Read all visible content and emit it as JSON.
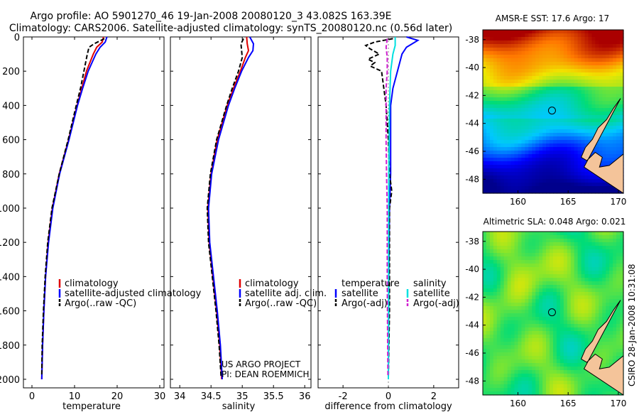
{
  "header": {
    "line1": "Argo profile: AO 5901270_46 19-Jan-2008 20080120_3 43.082S 163.39E",
    "line2": "Climatology: CARS2006. Satellite-adjusted climatology: synTS_20080120.nc (0.56d later)"
  },
  "credits": {
    "project": "US ARGO PROJECT",
    "pi": "PI: DEAN ROEMMICH",
    "stamp": "CSIRO 28-Jan-2008 10:31:08"
  },
  "colors": {
    "climatology": "#e00000",
    "satellite": "#0000ff",
    "argo": "#000000",
    "sal_satellite": "#00e0e0",
    "sal_argo": "#d020d0",
    "land": "#f4c49a"
  },
  "chart_data": [
    {
      "type": "line",
      "name": "temperature-profile",
      "xlabel": "temperature",
      "ylabel": "",
      "xlim": [
        -2,
        31
      ],
      "ylim": [
        2050,
        0
      ],
      "xticks": [
        0,
        10,
        20,
        30
      ],
      "yticks": [
        0,
        200,
        400,
        600,
        800,
        1000,
        1200,
        1400,
        1600,
        1800,
        2000
      ],
      "legend": [
        {
          "label": "climatology",
          "color": "#e00000",
          "dash": false
        },
        {
          "label": "satellite-adjusted climatology",
          "color": "#0000ff",
          "dash": false
        },
        {
          "label": "Argo(..raw -QC)",
          "color": "#000000",
          "dash": true
        }
      ],
      "series": [
        {
          "name": "climatology",
          "color": "#e00000",
          "dash": false,
          "depth": [
            0,
            30,
            60,
            100,
            150,
            200,
            300,
            400,
            600,
            800,
            1000,
            1200,
            1400,
            1600,
            1800,
            2000
          ],
          "values": [
            16.8,
            16.5,
            15.2,
            14.4,
            13.6,
            12.8,
            11.7,
            10.6,
            8.6,
            6.4,
            4.8,
            3.8,
            3.2,
            2.8,
            2.5,
            2.3
          ]
        },
        {
          "name": "satellite-adjusted climatology",
          "color": "#0000ff",
          "dash": false,
          "depth": [
            0,
            30,
            60,
            100,
            150,
            200,
            300,
            400,
            600,
            800,
            1000,
            1200,
            1400,
            1600,
            1800,
            2000
          ],
          "values": [
            17.6,
            17.2,
            16.0,
            15.0,
            14.1,
            13.2,
            11.9,
            10.7,
            8.7,
            6.5,
            4.9,
            3.9,
            3.2,
            2.8,
            2.5,
            2.3
          ]
        },
        {
          "name": "Argo(..raw -QC)",
          "color": "#000000",
          "dash": true,
          "depth": [
            10,
            40,
            60,
            100,
            150,
            200,
            300,
            400,
            600,
            800,
            1000,
            1200,
            1400,
            1600,
            1800,
            1980
          ],
          "values": [
            17.0,
            14.6,
            13.4,
            13.0,
            12.6,
            12.2,
            11.4,
            10.4,
            8.5,
            6.4,
            4.7,
            3.7,
            3.1,
            2.7,
            2.4,
            2.3
          ]
        }
      ]
    },
    {
      "type": "line",
      "name": "salinity-profile",
      "xlabel": "salinity",
      "ylabel": "",
      "xlim": [
        33.85,
        36.1
      ],
      "ylim": [
        2050,
        0
      ],
      "xticks": [
        34,
        34.5,
        35,
        35.5,
        36
      ],
      "xticklabels": [
        "34",
        "34.5",
        "35",
        "35.5",
        "36"
      ],
      "legend": [
        {
          "label": "climatology",
          "color": "#e00000",
          "dash": false
        },
        {
          "label": "satellite adj. clim.",
          "color": "#0000ff",
          "dash": false
        },
        {
          "label": "Argo(..raw -QC)",
          "color": "#000000",
          "dash": true
        }
      ],
      "series": [
        {
          "name": "climatology",
          "color": "#e00000",
          "dash": false,
          "depth": [
            0,
            40,
            80,
            120,
            200,
            300,
            400,
            600,
            800,
            1000,
            1200,
            1400,
            1600,
            1800,
            2000
          ],
          "values": [
            35.07,
            35.08,
            35.1,
            35.05,
            34.97,
            34.86,
            34.76,
            34.6,
            34.5,
            34.45,
            34.47,
            34.53,
            34.59,
            34.64,
            34.67
          ]
        },
        {
          "name": "satellite adj. clim.",
          "color": "#0000ff",
          "dash": false,
          "depth": [
            0,
            40,
            80,
            120,
            200,
            300,
            400,
            600,
            800,
            1000,
            1200,
            1400,
            1600,
            1800,
            2000
          ],
          "values": [
            35.12,
            35.18,
            35.17,
            35.1,
            34.99,
            34.88,
            34.78,
            34.62,
            34.51,
            34.46,
            34.48,
            34.54,
            34.6,
            34.65,
            34.68
          ]
        },
        {
          "name": "Argo(..raw -QC)",
          "color": "#000000",
          "dash": true,
          "depth": [
            10,
            40,
            80,
            120,
            200,
            300,
            400,
            600,
            800,
            1000,
            1200,
            1400,
            1600,
            1800,
            1980
          ],
          "values": [
            35.02,
            34.98,
            34.99,
            35.0,
            34.94,
            34.84,
            34.75,
            34.59,
            34.49,
            34.44,
            34.46,
            34.52,
            34.58,
            34.63,
            34.66
          ]
        }
      ]
    },
    {
      "type": "line",
      "name": "difference-profile",
      "xlabel": "difference from climatology",
      "ylabel": "",
      "xlim": [
        -3.1,
        3.1
      ],
      "ylim": [
        2050,
        0
      ],
      "xticks": [
        -2,
        0,
        2
      ],
      "legend_groups": [
        {
          "title": "temperature",
          "items": [
            {
              "label": "satellite",
              "color": "#0000ff",
              "dash": false
            },
            {
              "label": "Argo(-adj)",
              "color": "#000000",
              "dash": true
            }
          ]
        },
        {
          "title": "salinity",
          "items": [
            {
              "label": "satellite",
              "color": "#00e0e0",
              "dash": false
            },
            {
              "label": "Argo(-adj)",
              "color": "#d020d0",
              "dash": true
            }
          ]
        }
      ],
      "series": [
        {
          "name": "temperature satellite",
          "color": "#0000ff",
          "dash": false,
          "depth": [
            0,
            20,
            60,
            100,
            150,
            200,
            300,
            400,
            600,
            800,
            1000,
            1400,
            2000
          ],
          "values": [
            0.8,
            1.3,
            0.8,
            0.6,
            0.5,
            0.4,
            0.2,
            0.1,
            0.1,
            0.1,
            0.05,
            0.02,
            0.0
          ]
        },
        {
          "name": "temperature Argo(-adj)",
          "color": "#000000",
          "dash": true,
          "depth": [
            10,
            30,
            50,
            70,
            100,
            130,
            150,
            170,
            200,
            300,
            400,
            600,
            800,
            900,
            1000,
            1200,
            1600,
            1980
          ],
          "values": [
            0.2,
            -0.6,
            -1.0,
            -0.8,
            -0.4,
            -0.9,
            -0.6,
            -0.8,
            -0.3,
            -0.2,
            -0.1,
            0.0,
            0.05,
            0.15,
            0.05,
            0.05,
            0.05,
            0.0
          ]
        },
        {
          "name": "salinity satellite",
          "color": "#00e0e0",
          "dash": false,
          "depth": [
            0,
            50,
            100,
            200,
            400,
            800,
            1200,
            1600,
            2000
          ],
          "values": [
            0.3,
            0.3,
            0.2,
            0.1,
            0.05,
            0.02,
            0.01,
            0.01,
            0.0
          ]
        },
        {
          "name": "salinity Argo(-adj)",
          "color": "#d020d0",
          "dash": true,
          "depth": [
            10,
            60,
            120,
            200,
            300,
            400,
            600,
            800,
            1000,
            1400,
            1800,
            1980
          ],
          "values": [
            -0.05,
            -0.1,
            -0.05,
            -0.05,
            -0.1,
            -0.1,
            -0.1,
            -0.08,
            -0.05,
            -0.05,
            -0.03,
            -0.02
          ]
        }
      ]
    },
    {
      "type": "heatmap",
      "name": "sst-map",
      "title": "AMSR-E SST: 17.6 Argo: 17",
      "xticks": [
        160,
        165,
        170
      ],
      "yticks": [
        -38,
        -40,
        -42,
        -44,
        -46,
        -48
      ],
      "xlim": [
        156.5,
        170.5
      ],
      "ylim": [
        -49,
        -37.3
      ],
      "marker": {
        "lon": 163.39,
        "lat": -43.08
      }
    },
    {
      "type": "heatmap",
      "name": "sla-map",
      "title": "Altimetric SLA: 0.048 Argo: 0.021",
      "xticks": [
        160,
        165,
        170
      ],
      "yticks": [
        -38,
        -40,
        -42,
        -44,
        -46,
        -48
      ],
      "xlim": [
        156.5,
        170.5
      ],
      "ylim": [
        -49,
        -37.3
      ],
      "marker": {
        "lon": 163.39,
        "lat": -43.08
      }
    }
  ]
}
